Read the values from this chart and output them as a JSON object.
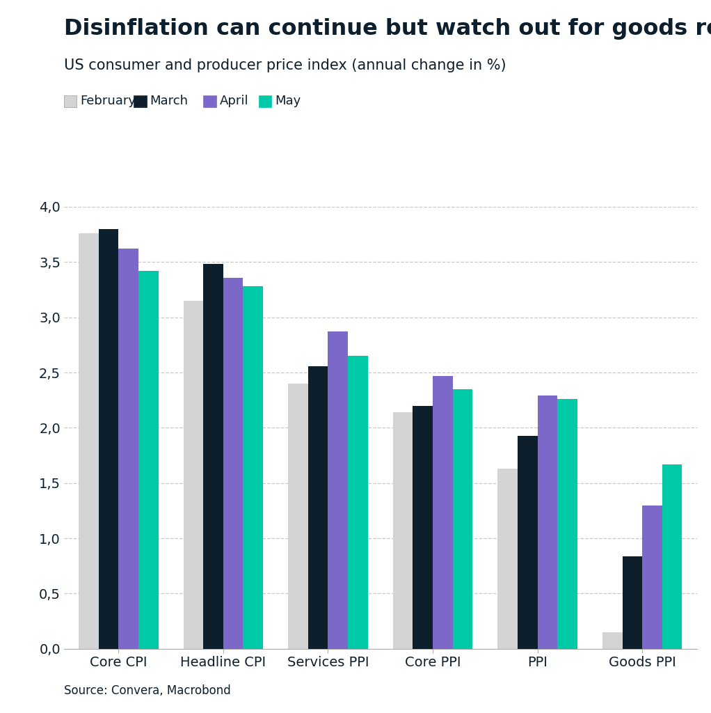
{
  "title": "Disinflation can continue but watch out for goods rebounding",
  "subtitle": "US consumer and producer price index (annual change in %)",
  "source": "Source: Convera, Macrobond",
  "categories": [
    "Core CPI",
    "Headline CPI",
    "Services PPI",
    "Core PPI",
    "PPI",
    "Goods PPI"
  ],
  "months": [
    "February",
    "March",
    "April",
    "May"
  ],
  "values": {
    "February": [
      3.76,
      3.15,
      2.4,
      2.14,
      1.63,
      0.15
    ],
    "March": [
      3.8,
      3.48,
      2.56,
      2.2,
      1.93,
      0.84
    ],
    "April": [
      3.62,
      3.36,
      2.87,
      2.47,
      2.29,
      1.3
    ],
    "May": [
      3.42,
      3.28,
      2.65,
      2.35,
      2.26,
      1.67
    ]
  },
  "colors": {
    "February": "#d4d4d4",
    "March": "#0d1f2d",
    "April": "#7b68c8",
    "May": "#00c9a7"
  },
  "ylim": [
    0,
    4.0
  ],
  "yticks": [
    0.0,
    0.5,
    1.0,
    1.5,
    2.0,
    2.5,
    3.0,
    3.5,
    4.0
  ],
  "ytick_labels": [
    "0,0",
    "0,5",
    "1,0",
    "1,5",
    "2,0",
    "2,5",
    "3,0",
    "3,5",
    "4,0"
  ],
  "title_color": "#0d1f2d",
  "subtitle_color": "#0d1f2d",
  "source_color": "#0d1f2d",
  "background_color": "#ffffff",
  "grid_color": "#c8c8c8",
  "title_fontsize": 23,
  "subtitle_fontsize": 15,
  "legend_fontsize": 13,
  "tick_fontsize": 14,
  "xlabel_fontsize": 14,
  "source_fontsize": 12
}
